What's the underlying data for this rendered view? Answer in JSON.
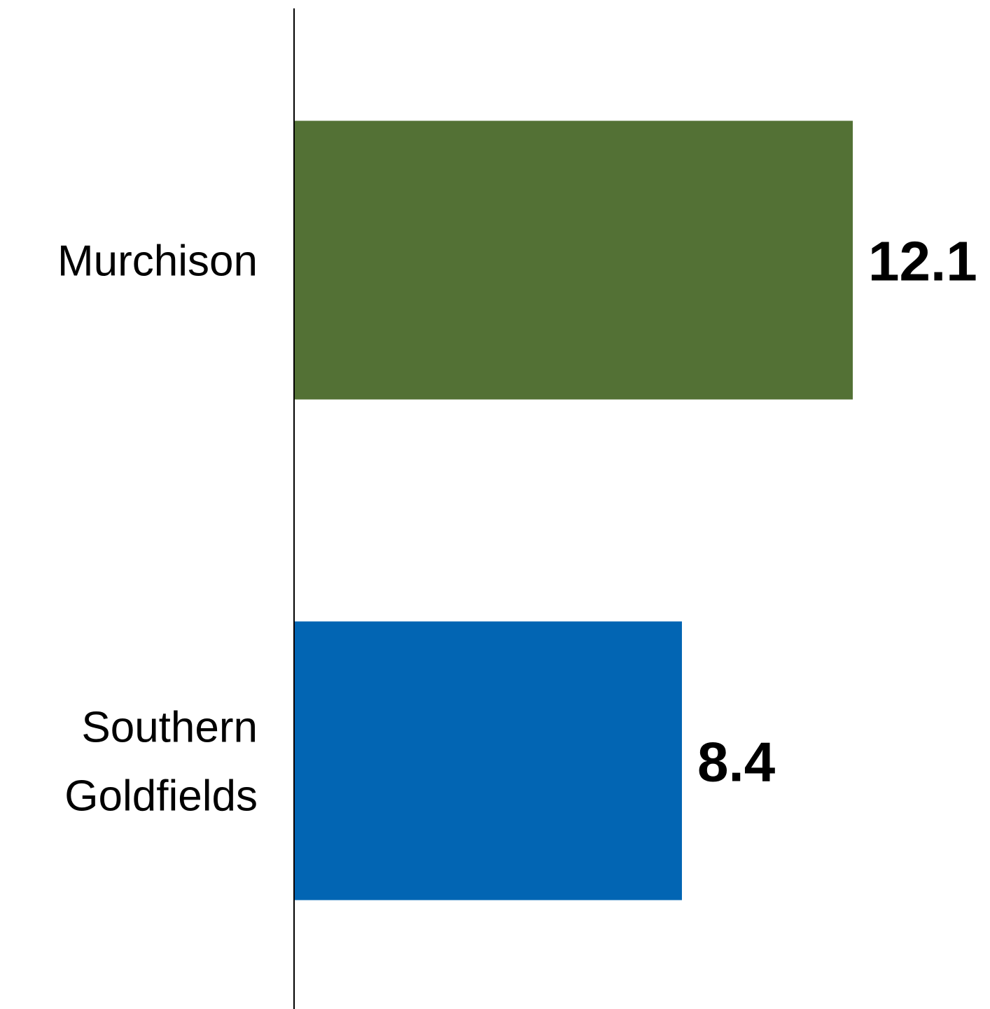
{
  "chart_data": {
    "type": "bar",
    "orientation": "horizontal",
    "title": "",
    "xlabel": "",
    "ylabel": "",
    "categories": [
      "Murchison",
      "Southern Goldfields"
    ],
    "category_label_lines": [
      [
        "Murchison"
      ],
      [
        "Southern",
        "Goldfields"
      ]
    ],
    "values": [
      12.1,
      8.4
    ],
    "value_labels": [
      "12.1",
      "8.4"
    ],
    "colors": [
      "#537135",
      "#0265B3"
    ],
    "xlim": [
      0,
      12.1
    ],
    "grid": false,
    "legend": "none"
  }
}
